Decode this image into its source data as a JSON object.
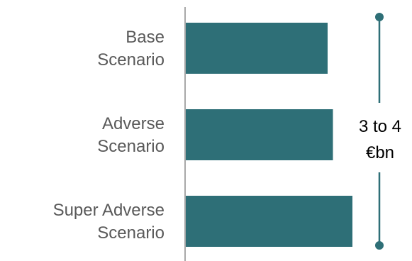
{
  "chart_data": {
    "type": "bar",
    "orientation": "horizontal",
    "categories": [
      [
        "Base",
        "Scenario"
      ],
      [
        "Adverse",
        "Scenario"
      ],
      [
        "Super Adverse",
        "Scenario"
      ]
    ],
    "values": [
      0.8,
      0.83,
      0.94
    ],
    "xlim": [
      0,
      1
    ],
    "grid": false,
    "legend": "none",
    "annotation": {
      "lines": [
        "3 to 4",
        "€bn"
      ],
      "type": "range-bracket"
    },
    "colors": {
      "bar": "#2E6F77",
      "axis": "#8C8C8C",
      "label": "#595959",
      "annotation_text": "#000000"
    }
  }
}
